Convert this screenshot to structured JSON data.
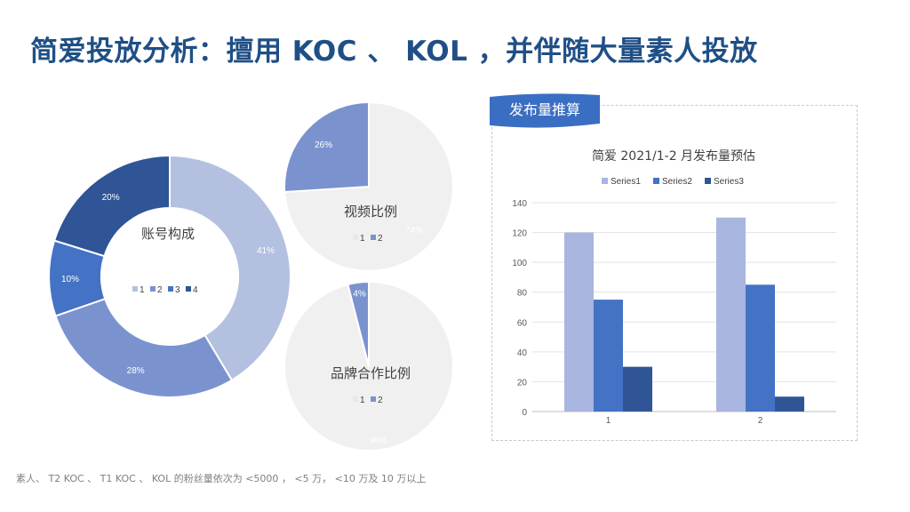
{
  "slide": {
    "title": "简爱投放分析：擅用 KOC 、 KOL ，并伴随大量素人投放",
    "footnote": "素人、 T2 KOC 、 T1 KOC 、 KOL 的粉丝量依次为 <5000 ， <5 万， <10 万及 10 万以上",
    "tag_label": "发布量推算"
  },
  "colors": {
    "title": "#1f4f86",
    "blue1": "#b4c0e0",
    "blue2": "#7a93cf",
    "blue3": "#4472c4",
    "blue4": "#2f5597",
    "grey_slice": "#f0f0f0",
    "bar1": "#a8b6e0",
    "bar2": "#4472c4",
    "bar3": "#2f5597"
  },
  "chart_data": [
    {
      "type": "pie",
      "id": "account",
      "title": "账号构成",
      "donut": true,
      "categories": [
        "1",
        "2",
        "3",
        "4"
      ],
      "values": [
        41,
        28,
        10,
        20
      ],
      "labels": [
        "41%",
        "28%",
        "10%",
        "20%"
      ],
      "legend_position": "center"
    },
    {
      "type": "pie",
      "id": "video",
      "title": "视频比例",
      "categories": [
        "1",
        "2"
      ],
      "values": [
        74,
        26
      ],
      "labels": [
        "74%",
        "26%"
      ],
      "legend_position": "center"
    },
    {
      "type": "pie",
      "id": "brand",
      "title": "品牌合作比例",
      "categories": [
        "1",
        "2"
      ],
      "values": [
        96,
        4
      ],
      "labels": [
        "96%",
        "4%"
      ],
      "legend_position": "center"
    },
    {
      "type": "bar",
      "id": "bars",
      "title": "简爱 2021/1-2 月发布量预估",
      "categories": [
        "1",
        "2"
      ],
      "series": [
        {
          "name": "Series1",
          "values": [
            120,
            130
          ]
        },
        {
          "name": "Series2",
          "values": [
            75,
            85
          ]
        },
        {
          "name": "Series3",
          "values": [
            30,
            10
          ]
        }
      ],
      "ylim": [
        0,
        140
      ],
      "yticks": [
        0,
        20,
        40,
        60,
        80,
        100,
        120,
        140
      ],
      "ytick_labels": [
        "0",
        "20",
        "40",
        "60",
        "80",
        "100",
        "120",
        "140"
      ],
      "grid": true,
      "legend_position": "top"
    }
  ]
}
